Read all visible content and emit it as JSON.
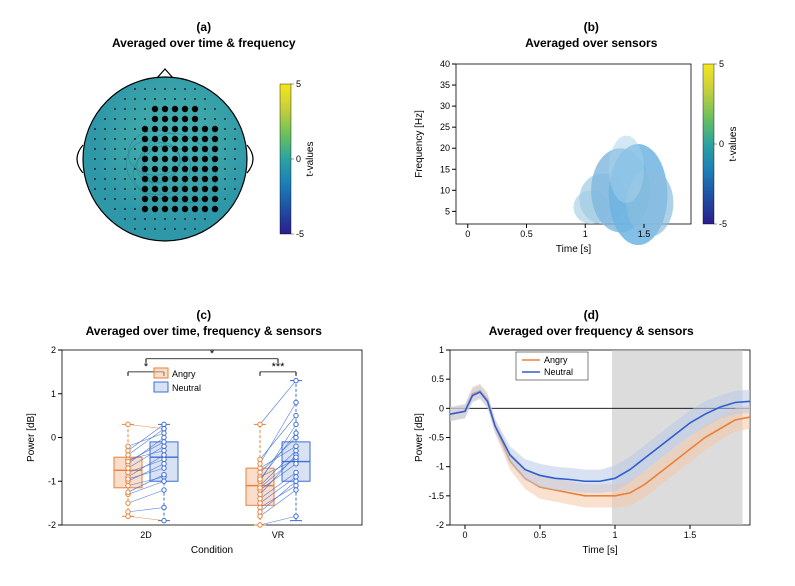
{
  "panel_a": {
    "label": "(a)",
    "title": "Averaged over time & frequency",
    "colorbar": {
      "min": -5,
      "max": 5,
      "label": "t-values"
    },
    "colormap_stops": [
      "#2b1d8e",
      "#1e4fa3",
      "#1c7eb8",
      "#2ba3a0",
      "#6cc15c",
      "#c6cf3a",
      "#f4e61e"
    ],
    "head_fill": "#3aa3a8",
    "contour_color": "#1e6f8f"
  },
  "panel_b": {
    "label": "(b)",
    "title": "Averaged over sensors",
    "xlabel": "Time [s]",
    "ylabel": "Frequency [Hz]",
    "xlim": [
      -0.1,
      1.9
    ],
    "xticks": [
      0,
      0.5,
      1,
      1.5
    ],
    "ylim": [
      2,
      40
    ],
    "yticks": [
      5,
      10,
      15,
      20,
      25,
      30,
      35,
      40
    ],
    "colorbar": {
      "min": -5,
      "max": 5,
      "label": "t-values"
    },
    "colormap_stops": [
      "#2b1d8e",
      "#1e4fa3",
      "#1c7eb8",
      "#2ba3a0",
      "#6cc15c",
      "#c6cf3a",
      "#f4e61e"
    ],
    "blobs": [
      {
        "t": 1.05,
        "f": 6,
        "w": 0.15,
        "h": 4,
        "c": "#9ecae1",
        "o": 0.6
      },
      {
        "t": 1.15,
        "f": 8,
        "w": 0.2,
        "h": 6,
        "c": "#9ecae1",
        "o": 0.7
      },
      {
        "t": 1.3,
        "f": 10,
        "w": 0.25,
        "h": 10,
        "c": "#7fb7de",
        "o": 0.8
      },
      {
        "t": 1.45,
        "f": 9,
        "w": 0.25,
        "h": 12,
        "c": "#6db4e2",
        "o": 0.85
      },
      {
        "t": 1.55,
        "f": 7,
        "w": 0.2,
        "h": 8,
        "c": "#8bbedf",
        "o": 0.7
      },
      {
        "t": 1.35,
        "f": 15,
        "w": 0.15,
        "h": 8,
        "c": "#a8d2ea",
        "o": 0.5
      }
    ]
  },
  "panel_c": {
    "label": "(c)",
    "title": "Averaged over time, frequency & sensors",
    "xlabel": "Condition",
    "ylabel": "Power [dB]",
    "ylim": [
      -2,
      2
    ],
    "yticks": [
      -2,
      -1,
      0,
      1,
      2
    ],
    "categories": [
      "2D",
      "VR"
    ],
    "colors": {
      "Angry": {
        "fill": "#f8c1a0",
        "edge": "#e7823c"
      },
      "Neutral": {
        "fill": "#b9cae7",
        "edge": "#3c6cd8"
      }
    },
    "legend": [
      "Angry",
      "Neutral"
    ],
    "boxes": {
      "2D_Angry": {
        "q1": -1.15,
        "med": -0.75,
        "q3": -0.45,
        "wl": -1.8,
        "wh": 0.3
      },
      "2D_Neutral": {
        "q1": -1.0,
        "med": -0.45,
        "q3": -0.1,
        "wl": -1.9,
        "wh": 0.3
      },
      "VR_Angry": {
        "q1": -1.55,
        "med": -1.1,
        "q3": -0.7,
        "wl": -2.0,
        "wh": 0.3
      },
      "VR_Neutral": {
        "q1": -1.0,
        "med": -0.55,
        "q3": -0.1,
        "wl": -1.9,
        "wh": 1.3
      }
    },
    "pairs_2D": [
      [
        -0.5,
        -0.3
      ],
      [
        -0.8,
        -0.5
      ],
      [
        -0.9,
        -0.4
      ],
      [
        -1.0,
        -0.6
      ],
      [
        -1.1,
        -0.9
      ],
      [
        -0.7,
        -0.2
      ],
      [
        -0.6,
        0.0
      ],
      [
        -1.3,
        -1.0
      ],
      [
        -0.4,
        0.2
      ],
      [
        -1.5,
        -1.2
      ],
      [
        -0.3,
        0.3
      ],
      [
        -1.7,
        -1.6
      ],
      [
        -0.55,
        -0.1
      ],
      [
        -0.95,
        -0.7
      ],
      [
        -1.25,
        -0.85
      ],
      [
        -0.2,
        0.1
      ],
      [
        0.3,
        0.2
      ],
      [
        -1.8,
        -1.9
      ]
    ],
    "pairs_VR": [
      [
        -0.9,
        -0.5
      ],
      [
        -1.2,
        -0.6
      ],
      [
        -1.4,
        -0.8
      ],
      [
        -1.1,
        -0.3
      ],
      [
        -1.5,
        -0.9
      ],
      [
        -1.6,
        -1.1
      ],
      [
        -0.7,
        -0.2
      ],
      [
        -1.3,
        -0.4
      ],
      [
        -1.8,
        -1.2
      ],
      [
        -0.8,
        0.0
      ],
      [
        -1.0,
        0.3
      ],
      [
        -2.0,
        -1.8
      ],
      [
        -0.6,
        0.8
      ],
      [
        -1.7,
        -1.0
      ],
      [
        -0.5,
        0.5
      ],
      [
        0.3,
        1.3
      ],
      [
        -1.15,
        -0.45
      ],
      [
        -0.95,
        0.1
      ]
    ],
    "sig": [
      {
        "from": "2D",
        "to": "2D",
        "y": 1.5,
        "label": "*"
      },
      {
        "from": "VR",
        "to": "VR",
        "y": 1.5,
        "label": "***"
      },
      {
        "from": "2D",
        "to": "VR",
        "y": 1.8,
        "label": "*"
      }
    ]
  },
  "panel_d": {
    "label": "(d)",
    "title": "Averaged over frequency & sensors",
    "xlabel": "Time [s]",
    "ylabel": "Power [dB]",
    "xlim": [
      -0.1,
      1.9
    ],
    "xticks": [
      0,
      0.5,
      1,
      1.5
    ],
    "ylim": [
      -2,
      1
    ],
    "yticks": [
      -2,
      -1.5,
      -1,
      -0.5,
      0,
      0.5,
      1
    ],
    "shade_x": [
      0.98,
      1.85
    ],
    "shade_color": "#bfbfbf",
    "series": {
      "Angry": {
        "color": "#e7823c",
        "fill": "#f5c6a6"
      },
      "Neutral": {
        "color": "#2e5fd0",
        "fill": "#b9cae7"
      }
    },
    "legend": [
      "Angry",
      "Neutral"
    ],
    "t": [
      -0.1,
      0,
      0.05,
      0.1,
      0.15,
      0.2,
      0.3,
      0.4,
      0.5,
      0.6,
      0.7,
      0.8,
      0.9,
      1.0,
      1.1,
      1.2,
      1.3,
      1.4,
      1.5,
      1.6,
      1.7,
      1.8,
      1.9
    ],
    "angry_mean": [
      -0.1,
      -0.05,
      0.25,
      0.3,
      0.15,
      -0.3,
      -0.9,
      -1.2,
      -1.35,
      -1.4,
      -1.45,
      -1.5,
      -1.5,
      -1.5,
      -1.45,
      -1.3,
      -1.1,
      -0.9,
      -0.7,
      -0.5,
      -0.35,
      -0.2,
      -0.15
    ],
    "angry_sd": [
      0.12,
      0.12,
      0.12,
      0.12,
      0.12,
      0.12,
      0.15,
      0.18,
      0.2,
      0.2,
      0.2,
      0.2,
      0.2,
      0.2,
      0.22,
      0.22,
      0.22,
      0.22,
      0.22,
      0.22,
      0.2,
      0.2,
      0.2
    ],
    "neutral_mean": [
      -0.1,
      -0.05,
      0.22,
      0.28,
      0.12,
      -0.3,
      -0.8,
      -1.05,
      -1.15,
      -1.2,
      -1.22,
      -1.25,
      -1.25,
      -1.2,
      -1.05,
      -0.85,
      -0.65,
      -0.45,
      -0.25,
      -0.1,
      0.02,
      0.1,
      0.12
    ],
    "neutral_sd": [
      0.12,
      0.12,
      0.12,
      0.12,
      0.12,
      0.12,
      0.15,
      0.18,
      0.2,
      0.2,
      0.2,
      0.2,
      0.2,
      0.22,
      0.22,
      0.22,
      0.22,
      0.22,
      0.22,
      0.22,
      0.2,
      0.2,
      0.2
    ]
  }
}
